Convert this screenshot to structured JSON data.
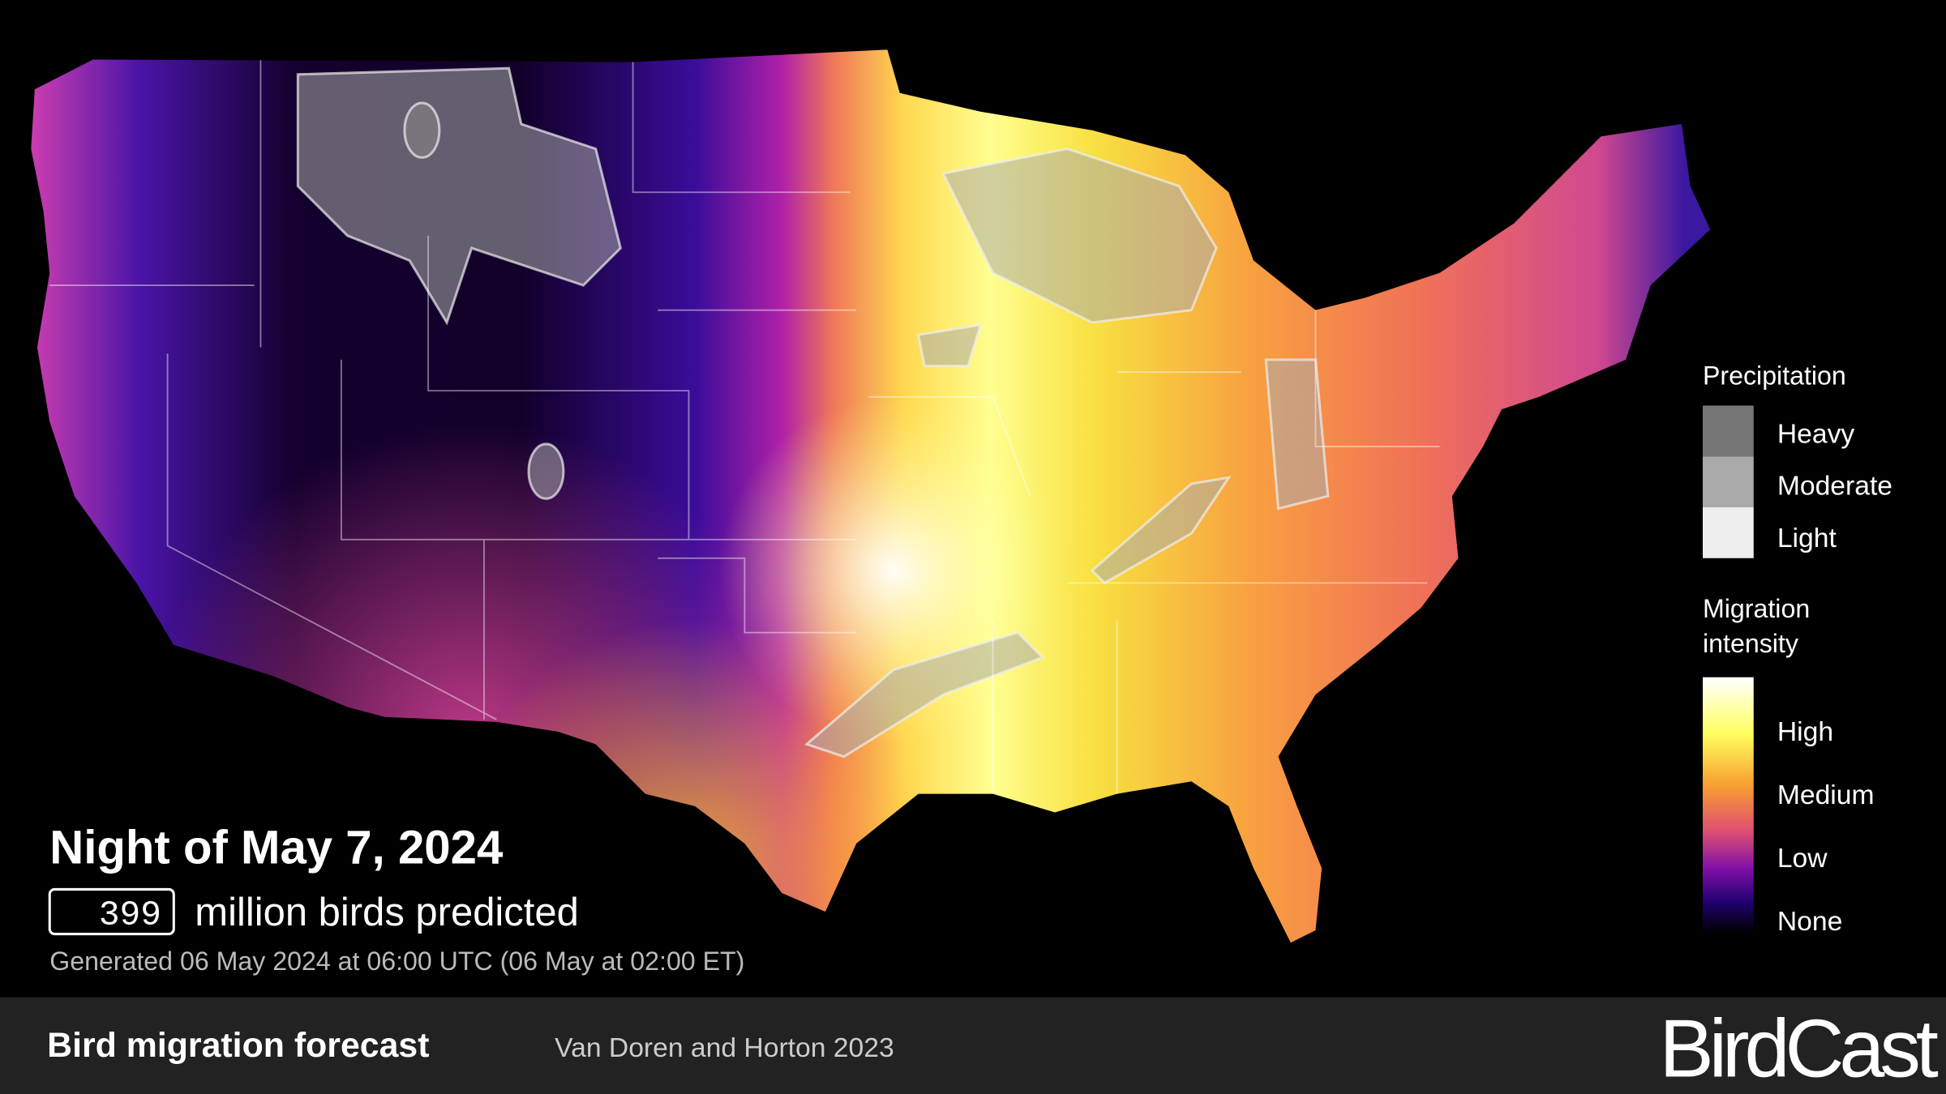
{
  "header": {
    "title": "Night of May 7, 2024",
    "count": 399,
    "count_caption": "million birds predicted",
    "generated": "Generated 06 May 2024 at 06:00 UTC (06 May at 02:00 ET)"
  },
  "legend": {
    "precipitation": {
      "title": "Precipitation",
      "levels": [
        "Heavy",
        "Moderate",
        "Light"
      ]
    },
    "migration": {
      "title": "Migration intensity",
      "levels": [
        "High",
        "Medium",
        "Low",
        "None"
      ]
    }
  },
  "footer": {
    "title": "Bird migration forecast",
    "citation": "Van Doren and Horton 2023",
    "brand": "BirdCast"
  }
}
